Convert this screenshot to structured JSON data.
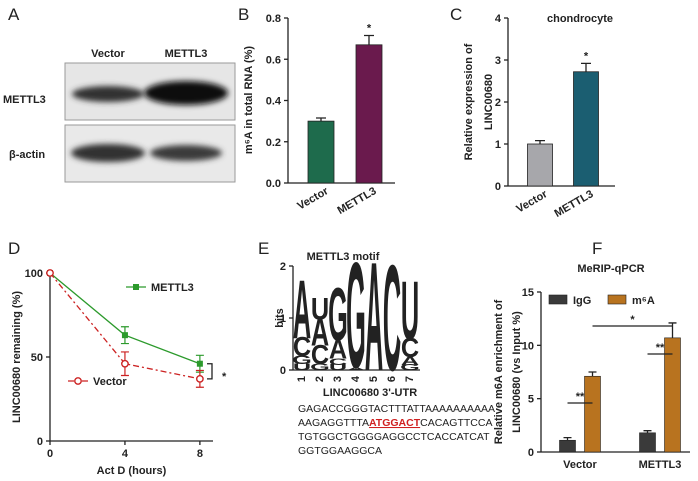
{
  "chart_data": [
    {
      "type": "bar",
      "panel_label": "B",
      "ylabel": "m⁶A in total RNA (%)",
      "categories": [
        "Vector",
        "METTL3"
      ],
      "values": [
        0.3,
        0.67
      ],
      "errors": [
        0.015,
        0.045
      ],
      "colors": [
        "#1e6b4c",
        "#6a1a4d"
      ],
      "ylim": [
        0,
        0.8
      ],
      "yticks": [
        {
          "value": 0,
          "label": "0.0"
        },
        {
          "value": 0.2,
          "label": "0.2"
        },
        {
          "value": 0.4,
          "label": "0.4"
        },
        {
          "value": 0.6,
          "label": "0.6"
        },
        {
          "value": 0.8,
          "label": "0.8"
        }
      ],
      "annotations": [
        "*"
      ]
    },
    {
      "type": "bar",
      "panel_label": "C",
      "title": "chondrocyte",
      "ylabel": [
        "Relative expression of",
        "LINC00680"
      ],
      "categories": [
        "Vector",
        "METTL3"
      ],
      "values": [
        1.0,
        2.72
      ],
      "errors": [
        0.08,
        0.2
      ],
      "colors": [
        "#a7a7ab",
        "#1b5e71"
      ],
      "ylim": [
        0,
        4
      ],
      "yticks": [
        0,
        1,
        2,
        3,
        4
      ],
      "annotations": [
        "*"
      ]
    },
    {
      "type": "line",
      "panel_label": "D",
      "ylabel": "LINC00680 remaining (%)",
      "xlabel": "Act D (hours)",
      "x": [
        0,
        4,
        8
      ],
      "series": [
        {
          "name": "METTL3",
          "color": "#2c9a2c",
          "values": [
            100,
            63,
            46
          ],
          "errors": [
            0,
            5,
            5
          ],
          "style": "solid",
          "marker": "square"
        },
        {
          "name": "Vector",
          "color": "#cc2222",
          "values": [
            100,
            46,
            37
          ],
          "errors": [
            0,
            7,
            5
          ],
          "style": "dashdot",
          "marker": "open-circle"
        }
      ],
      "xlim": [
        0,
        8.7
      ],
      "xticks": [
        0,
        4,
        8
      ],
      "ylim": [
        0,
        100
      ],
      "yticks": [
        0,
        50,
        100
      ],
      "annotations": [
        "*"
      ]
    },
    {
      "type": "logo",
      "panel_label": "E",
      "title": "METTL3 motif",
      "ylabel": "bits",
      "ylim": [
        0,
        2
      ],
      "yticks": [
        0,
        1,
        2
      ],
      "categories": [
        "1",
        "2",
        "3",
        "4",
        "5",
        "6",
        "7"
      ],
      "letter_colors": {
        "A": "#0a9b3a",
        "C": "#1f3fcc",
        "G": "#f2a01c",
        "U": "#d7261e"
      },
      "positions": [
        [
          {
            "letter": "U",
            "height": 0.12
          },
          {
            "letter": "G",
            "height": 0.15
          },
          {
            "letter": "C",
            "height": 0.35
          },
          {
            "letter": "A",
            "height": 1.05
          }
        ],
        [
          {
            "letter": "G",
            "height": 0.12
          },
          {
            "letter": "C",
            "height": 0.35
          },
          {
            "letter": "A",
            "height": 0.5
          },
          {
            "letter": "U",
            "height": 0.4
          }
        ],
        [
          {
            "letter": "U",
            "height": 0.1
          },
          {
            "letter": "C",
            "height": 0.12
          },
          {
            "letter": "A",
            "height": 0.35
          },
          {
            "letter": "G",
            "height": 0.95
          }
        ],
        [
          {
            "letter": "A",
            "height": 0.05
          },
          {
            "letter": "G",
            "height": 1.9
          }
        ],
        [
          {
            "letter": "A",
            "height": 1.95
          }
        ],
        [
          {
            "letter": "C",
            "height": 1.9
          }
        ],
        [
          {
            "letter": "G",
            "height": 0.1
          },
          {
            "letter": "A",
            "height": 0.15
          },
          {
            "letter": "C",
            "height": 0.35
          },
          {
            "letter": "U",
            "height": 1.05
          }
        ]
      ]
    },
    {
      "type": "grouped_bar",
      "panel_label": "F",
      "title": "MeRIP-qPCR",
      "ylabel": [
        "Relative m6A enrichment of",
        "LINC00680 (vs Input %)"
      ],
      "categories": [
        "Vector",
        "METTL3"
      ],
      "series": [
        {
          "name": "IgG",
          "color": "#3a3a3a",
          "values": [
            1.1,
            1.8
          ],
          "errors": [
            0.25,
            0.2
          ]
        },
        {
          "name": "m⁶A",
          "color": "#b8731f",
          "values": [
            7.1,
            10.7
          ],
          "errors": [
            0.4,
            1.4
          ]
        }
      ],
      "ylim": [
        0,
        15
      ],
      "yticks": [
        0,
        5,
        10,
        15
      ],
      "annotations": [
        "**",
        "**",
        "*"
      ]
    }
  ],
  "blot": {
    "panel_label": "A",
    "columns": [
      "Vector",
      "METTL3"
    ],
    "rows": [
      "METTL3",
      "β-actin"
    ]
  },
  "sequence": {
    "title": "LINC00680 3'-UTR",
    "lines": [
      "GAGACCGGGTACTTTATTAAAAAAAAAA",
      [
        "AAGAGGTTTA",
        "ATGGACT",
        "CACAGTTCCA"
      ],
      "TGTGGCTGGGGAGGCCTCACCATCAT",
      "GGTGGAAGGCA"
    ]
  }
}
